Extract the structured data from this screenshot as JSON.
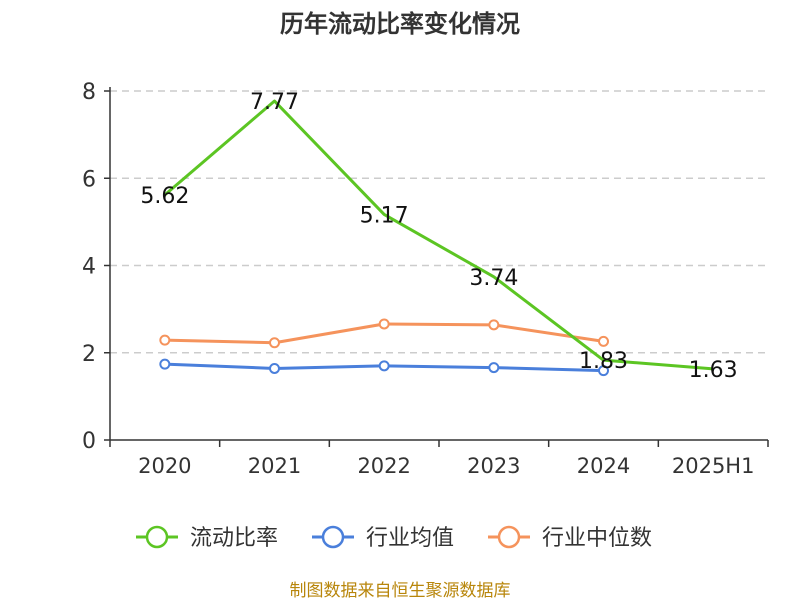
{
  "chart_data": {
    "type": "line",
    "title": "历年流动比率变化情况",
    "categories": [
      "2020",
      "2021",
      "2022",
      "2023",
      "2024",
      "2025H1"
    ],
    "yticks": [
      "0",
      "2",
      "4",
      "6",
      "8"
    ],
    "ylim": [
      0,
      8
    ],
    "grid": true,
    "legend_position": "bottom",
    "series": [
      {
        "name": "流动比率",
        "color": "#5cc523",
        "values": [
          5.62,
          7.77,
          5.17,
          3.74,
          1.83,
          1.63
        ],
        "labels": [
          "5.62",
          "7.77",
          "5.17",
          "3.74",
          "1.83",
          "1.63"
        ]
      },
      {
        "name": "行业均值",
        "color": "#4a7fdb",
        "values": [
          1.74,
          1.64,
          1.7,
          1.66,
          1.59,
          null
        ]
      },
      {
        "name": "行业中位数",
        "color": "#f5935c",
        "values": [
          2.29,
          2.23,
          2.66,
          2.64,
          2.26,
          null
        ]
      }
    ],
    "source": "制图数据来自恒生聚源数据库"
  }
}
